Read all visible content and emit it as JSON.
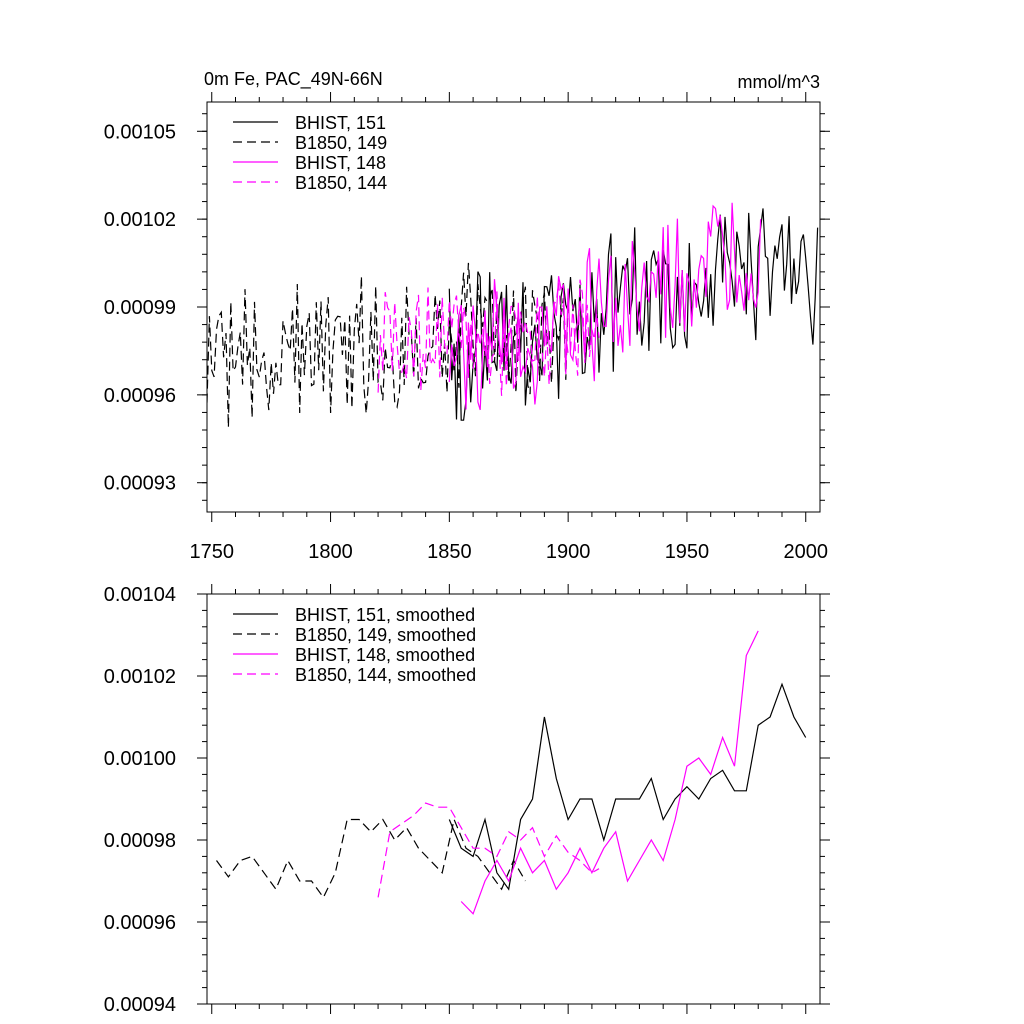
{
  "chart_data": [
    {
      "type": "line",
      "title": "0m Fe, PAC_49N-66N",
      "units": "mmol/m^3",
      "xlim": [
        1748,
        2006
      ],
      "ylim": [
        0.00092,
        0.00106
      ],
      "x_ticks": [
        "1750",
        "1800",
        "1850",
        "1900",
        "1950",
        "2000"
      ],
      "y_ticks": [
        "0.00093",
        "0.00096",
        "0.00099",
        "0.00102",
        "0.00105"
      ],
      "legend": "top-left",
      "grid": false,
      "series": [
        {
          "name": "BHIST, 151",
          "color": "#000000",
          "dash": "solid",
          "x_start": 1850,
          "x_end": 2005,
          "base_start": 0.000975,
          "base_end": 0.001005,
          "amplitude": 2.2e-05,
          "seed": 151
        },
        {
          "name": "B1850, 149",
          "color": "#000000",
          "dash": "dashed",
          "x_start": 1748,
          "x_end": 1900,
          "base_start": 0.000972,
          "base_end": 0.000982,
          "amplitude": 2e-05,
          "seed": 149
        },
        {
          "name": "BHIST, 148",
          "color": "#ff00ff",
          "dash": "solid",
          "x_start": 1850,
          "x_end": 1981,
          "base_start": 0.00097,
          "base_end": 0.00101,
          "amplitude": 2e-05,
          "seed": 148
        },
        {
          "name": "B1850, 144",
          "color": "#ff00ff",
          "dash": "dashed",
          "x_start": 1820,
          "x_end": 1913,
          "base_start": 0.000978,
          "base_end": 0.000979,
          "amplitude": 1.6e-05,
          "seed": 144
        }
      ]
    },
    {
      "type": "line",
      "title": "",
      "xlim": [
        1748,
        2006
      ],
      "ylim": [
        0.00094,
        0.00104
      ],
      "x_ticks": [],
      "y_ticks": [
        "0.00094",
        "0.00096",
        "0.00098",
        "0.00100",
        "0.00102",
        "0.00104"
      ],
      "legend": "top-left",
      "grid": false,
      "series": [
        {
          "name": "BHIST, 151, smoothed",
          "color": "#000000",
          "dash": "solid",
          "x": [
            1850,
            1855,
            1860,
            1865,
            1870,
            1875,
            1880,
            1885,
            1890,
            1895,
            1900,
            1905,
            1910,
            1915,
            1920,
            1925,
            1930,
            1935,
            1940,
            1945,
            1950,
            1955,
            1960,
            1965,
            1970,
            1975,
            1980,
            1985,
            1990,
            1995,
            2000
          ],
          "y": [
            0.000985,
            0.000978,
            0.000976,
            0.000985,
            0.000972,
            0.000968,
            0.000985,
            0.00099,
            0.00101,
            0.000995,
            0.000985,
            0.00099,
            0.00099,
            0.00098,
            0.00099,
            0.00099,
            0.00099,
            0.000995,
            0.000985,
            0.00099,
            0.000993,
            0.00099,
            0.000995,
            0.000997,
            0.000992,
            0.000992,
            0.001008,
            0.00101,
            0.001018,
            0.00101,
            0.001005
          ]
        },
        {
          "name": "B1850, 149, smoothed",
          "color": "#000000",
          "dash": "dashed",
          "x": [
            1752,
            1757,
            1762,
            1767,
            1772,
            1777,
            1782,
            1787,
            1792,
            1797,
            1802,
            1807,
            1812,
            1817,
            1822,
            1827,
            1832,
            1837,
            1842,
            1847,
            1852,
            1857,
            1862,
            1867,
            1872,
            1877,
            1882
          ],
          "y": [
            0.000975,
            0.000971,
            0.000975,
            0.000976,
            0.000972,
            0.000968,
            0.000975,
            0.00097,
            0.00097,
            0.000966,
            0.000972,
            0.000985,
            0.000985,
            0.000982,
            0.000985,
            0.00098,
            0.000983,
            0.000978,
            0.000975,
            0.000972,
            0.000985,
            0.000978,
            0.000976,
            0.000972,
            0.000968,
            0.000975,
            0.00097
          ]
        },
        {
          "name": "BHIST, 148, smoothed",
          "color": "#ff00ff",
          "dash": "solid",
          "x": [
            1855,
            1860,
            1865,
            1870,
            1875,
            1880,
            1885,
            1890,
            1895,
            1900,
            1905,
            1910,
            1915,
            1920,
            1925,
            1930,
            1935,
            1940,
            1945,
            1950,
            1955,
            1960,
            1965,
            1970,
            1975,
            1980
          ],
          "y": [
            0.000965,
            0.000962,
            0.00097,
            0.000975,
            0.00097,
            0.000978,
            0.000972,
            0.000975,
            0.000968,
            0.000972,
            0.000978,
            0.000972,
            0.000978,
            0.000982,
            0.00097,
            0.000975,
            0.00098,
            0.000975,
            0.000985,
            0.000998,
            0.001,
            0.000996,
            0.001005,
            0.000998,
            0.001025,
            0.001031
          ]
        },
        {
          "name": "B1850, 144, smoothed",
          "color": "#ff00ff",
          "dash": "dashed",
          "x": [
            1820,
            1825,
            1830,
            1835,
            1840,
            1845,
            1850,
            1855,
            1860,
            1865,
            1870,
            1875,
            1880,
            1885,
            1890,
            1895,
            1900,
            1905,
            1910,
            1913
          ],
          "y": [
            0.000966,
            0.000982,
            0.000984,
            0.000986,
            0.000989,
            0.000988,
            0.000988,
            0.000983,
            0.000978,
            0.000978,
            0.000976,
            0.000982,
            0.00098,
            0.000983,
            0.000976,
            0.000981,
            0.000977,
            0.000975,
            0.000972,
            0.000973
          ]
        }
      ]
    }
  ]
}
